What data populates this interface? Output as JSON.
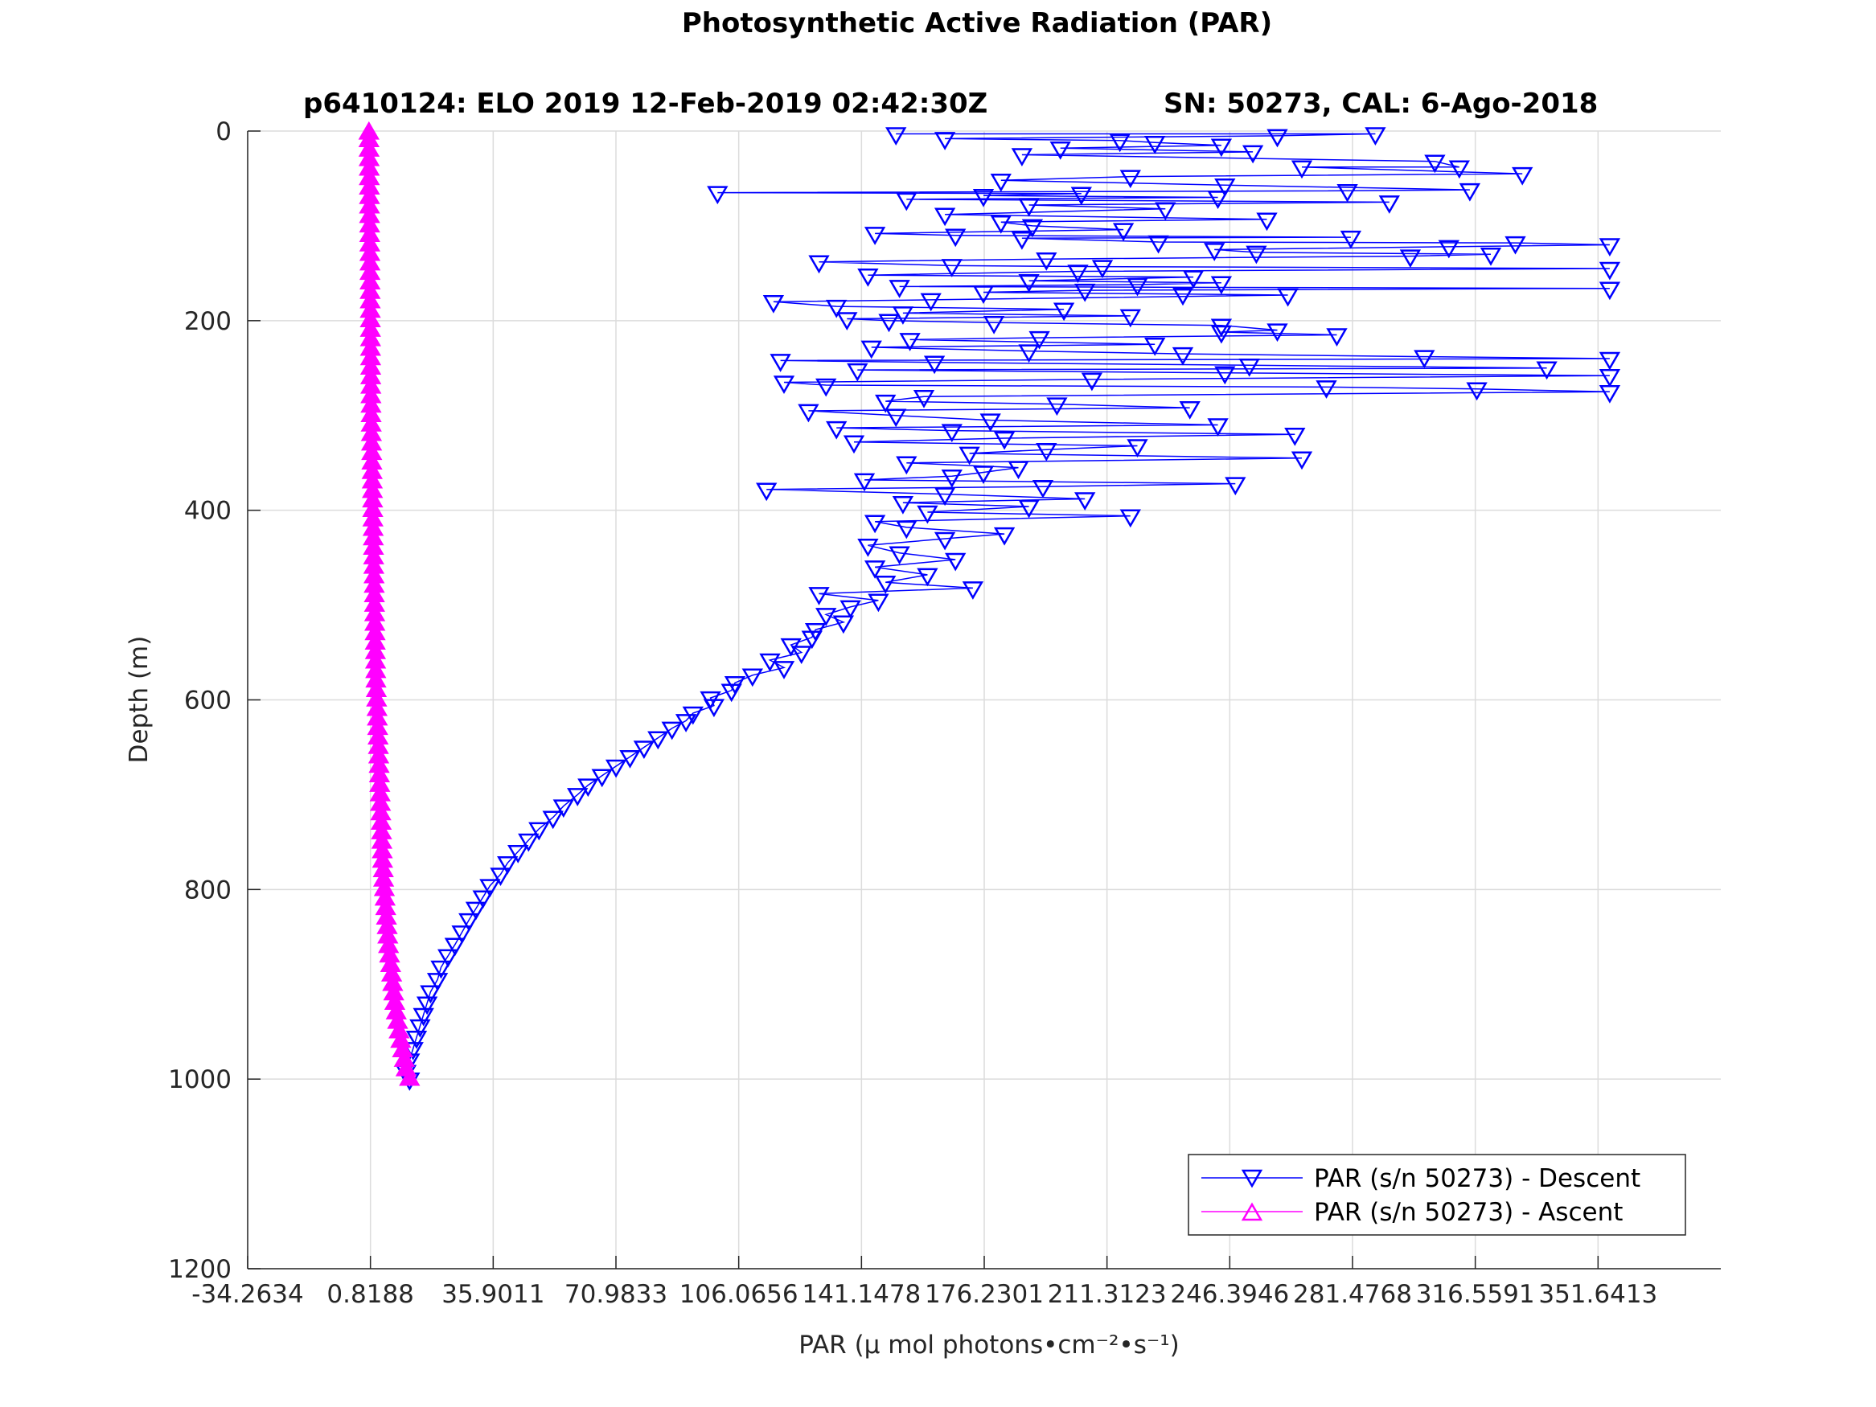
{
  "chart_data": {
    "type": "line",
    "title": "Photosynthetic Active Radiation (PAR)",
    "subtitle_left": "p6410124: ELO 2019 12-Feb-2019 02:42:30Z",
    "subtitle_right": "SN: 50273, CAL: 6-Ago-2018",
    "xlabel": "PAR (μ mol photons•cm⁻²•s⁻¹)",
    "ylabel": "Depth (m)",
    "xlim": [
      -34.2634,
      386.7236
    ],
    "ylim": [
      0,
      1200
    ],
    "y_reversed": true,
    "xticks": [
      -34.2634,
      0.8188,
      35.9011,
      70.9833,
      106.0656,
      141.1478,
      176.2301,
      211.3123,
      246.3946,
      281.4768,
      316.5591,
      351.6413
    ],
    "xtick_labels": [
      "-34.2634",
      "0.8188",
      "35.9011",
      "70.9833",
      "106.0656",
      "141.1478",
      "176.2301",
      "211.3123",
      "246.3946",
      "281.4768",
      "316.5591",
      "351.6413"
    ],
    "yticks": [
      0,
      200,
      400,
      600,
      800,
      1000,
      1200
    ],
    "ytick_labels": [
      "0",
      "200",
      "400",
      "600",
      "800",
      "1000",
      "1200"
    ],
    "grid": true,
    "legend_position": "bottom-right",
    "series": [
      {
        "name": "PAR (s/n 50273) - Descent",
        "color": "#0000ff",
        "marker": "triangle-down",
        "points": [
          [
            151,
            3
          ],
          [
            288,
            3
          ],
          [
            260,
            5
          ],
          [
            165,
            8
          ],
          [
            215,
            10
          ],
          [
            225,
            12
          ],
          [
            244,
            15
          ],
          [
            198,
            18
          ],
          [
            253,
            22
          ],
          [
            187,
            25
          ],
          [
            305,
            32
          ],
          [
            312,
            38
          ],
          [
            267,
            38
          ],
          [
            330,
            45
          ],
          [
            218,
            48
          ],
          [
            181,
            52
          ],
          [
            245,
            57
          ],
          [
            315,
            62
          ],
          [
            280,
            63
          ],
          [
            100,
            65
          ],
          [
            204,
            66
          ],
          [
            176,
            68
          ],
          [
            243,
            70
          ],
          [
            154,
            72
          ],
          [
            292,
            75
          ],
          [
            189,
            78
          ],
          [
            228,
            82
          ],
          [
            165,
            88
          ],
          [
            257,
            93
          ],
          [
            181,
            96
          ],
          [
            190,
            100
          ],
          [
            216,
            104
          ],
          [
            145,
            108
          ],
          [
            168,
            110
          ],
          [
            281,
            112
          ],
          [
            187,
            113
          ],
          [
            226,
            117
          ],
          [
            328,
            118
          ],
          [
            355,
            120
          ],
          [
            309,
            122
          ],
          [
            242,
            125
          ],
          [
            254,
            128
          ],
          [
            321,
            130
          ],
          [
            298,
            132
          ],
          [
            194,
            135
          ],
          [
            129,
            138
          ],
          [
            167,
            142
          ],
          [
            210,
            143
          ],
          [
            355,
            145
          ],
          [
            203,
            148
          ],
          [
            143,
            152
          ],
          [
            236,
            154
          ],
          [
            189,
            158
          ],
          [
            244,
            160
          ],
          [
            220,
            162
          ],
          [
            152,
            164
          ],
          [
            355,
            166
          ],
          [
            205,
            168
          ],
          [
            176,
            170
          ],
          [
            233,
            172
          ],
          [
            263,
            173
          ],
          [
            161,
            178
          ],
          [
            116,
            180
          ],
          [
            134,
            185
          ],
          [
            199,
            188
          ],
          [
            153,
            192
          ],
          [
            218,
            195
          ],
          [
            137,
            198
          ],
          [
            149,
            200
          ],
          [
            179,
            202
          ],
          [
            244,
            205
          ],
          [
            260,
            210
          ],
          [
            244,
            212
          ],
          [
            277,
            215
          ],
          [
            192,
            218
          ],
          [
            155,
            220
          ],
          [
            225,
            225
          ],
          [
            144,
            228
          ],
          [
            189,
            232
          ],
          [
            233,
            235
          ],
          [
            302,
            238
          ],
          [
            355,
            240
          ],
          [
            118,
            242
          ],
          [
            162,
            244
          ],
          [
            252,
            247
          ],
          [
            337,
            250
          ],
          [
            140,
            252
          ],
          [
            245,
            255
          ],
          [
            355,
            258
          ],
          [
            207,
            262
          ],
          [
            119,
            265
          ],
          [
            131,
            268
          ],
          [
            274,
            270
          ],
          [
            317,
            272
          ],
          [
            355,
            275
          ],
          [
            159,
            280
          ],
          [
            148,
            285
          ],
          [
            197,
            288
          ],
          [
            235,
            292
          ],
          [
            126,
            295
          ],
          [
            151,
            300
          ],
          [
            178,
            305
          ],
          [
            243,
            310
          ],
          [
            134,
            313
          ],
          [
            167,
            316
          ],
          [
            265,
            320
          ],
          [
            182,
            324
          ],
          [
            139,
            328
          ],
          [
            220,
            332
          ],
          [
            194,
            336
          ],
          [
            172,
            340
          ],
          [
            267,
            345
          ],
          [
            154,
            350
          ],
          [
            186,
            355
          ],
          [
            176,
            360
          ],
          [
            167,
            364
          ],
          [
            142,
            368
          ],
          [
            248,
            372
          ],
          [
            193,
            375
          ],
          [
            114,
            378
          ],
          [
            165,
            383
          ],
          [
            205,
            388
          ],
          [
            153,
            392
          ],
          [
            189,
            396
          ],
          [
            160,
            402
          ],
          [
            218,
            406
          ],
          [
            145,
            412
          ],
          [
            154,
            418
          ],
          [
            182,
            425
          ],
          [
            165,
            430
          ],
          [
            143,
            437
          ],
          [
            152,
            445
          ],
          [
            168,
            452
          ],
          [
            145,
            460
          ],
          [
            160,
            468
          ],
          [
            148,
            476
          ],
          [
            173,
            482
          ],
          [
            129,
            488
          ],
          [
            146,
            495
          ],
          [
            138,
            502
          ],
          [
            131,
            510
          ],
          [
            136,
            518
          ],
          [
            128,
            526
          ],
          [
            127,
            534
          ],
          [
            121,
            542
          ],
          [
            124,
            550
          ],
          [
            115,
            558
          ],
          [
            119,
            566
          ],
          [
            110,
            574
          ],
          [
            105,
            582
          ],
          [
            104,
            590
          ],
          [
            98,
            598
          ],
          [
            99,
            606
          ],
          [
            93,
            614
          ],
          [
            91,
            622
          ],
          [
            87,
            630
          ],
          [
            83,
            640
          ],
          [
            79,
            650
          ],
          [
            75,
            660
          ],
          [
            71,
            670
          ],
          [
            67,
            680
          ],
          [
            63,
            690
          ],
          [
            60,
            700
          ],
          [
            56,
            712
          ],
          [
            53,
            724
          ],
          [
            49,
            736
          ],
          [
            46,
            748
          ],
          [
            43,
            760
          ],
          [
            40,
            772
          ],
          [
            38,
            784
          ],
          [
            35,
            796
          ],
          [
            33,
            808
          ],
          [
            31,
            820
          ],
          [
            29,
            832
          ],
          [
            27,
            845
          ],
          [
            25,
            858
          ],
          [
            23,
            870
          ],
          [
            21,
            882
          ],
          [
            20,
            895
          ],
          [
            18,
            908
          ],
          [
            17,
            920
          ],
          [
            16,
            932
          ],
          [
            15,
            944
          ],
          [
            14,
            956
          ],
          [
            13,
            968
          ],
          [
            12,
            980
          ],
          [
            11,
            992
          ],
          [
            12,
            1000
          ]
        ]
      },
      {
        "name": "PAR (s/n 50273) - Ascent",
        "color": "#ff00ff",
        "marker": "triangle-up",
        "points": [
          [
            12,
            1000
          ],
          [
            11,
            990
          ],
          [
            10.5,
            980
          ],
          [
            10,
            970
          ],
          [
            9.5,
            960
          ],
          [
            9,
            950
          ],
          [
            8.6,
            940
          ],
          [
            8.2,
            930
          ],
          [
            7.8,
            920
          ],
          [
            7.5,
            910
          ],
          [
            7.2,
            900
          ],
          [
            6.9,
            890
          ],
          [
            6.6,
            880
          ],
          [
            6.3,
            870
          ],
          [
            6,
            860
          ],
          [
            5.8,
            850
          ],
          [
            5.6,
            840
          ],
          [
            5.4,
            830
          ],
          [
            5.2,
            820
          ],
          [
            5,
            810
          ],
          [
            4.8,
            800
          ],
          [
            4.6,
            790
          ],
          [
            4.5,
            780
          ],
          [
            4.3,
            770
          ],
          [
            4.2,
            760
          ],
          [
            4.1,
            750
          ],
          [
            4,
            740
          ],
          [
            3.9,
            730
          ],
          [
            3.8,
            720
          ],
          [
            3.7,
            710
          ],
          [
            3.6,
            700
          ],
          [
            3.5,
            690
          ],
          [
            3.4,
            680
          ],
          [
            3.3,
            670
          ],
          [
            3.2,
            660
          ],
          [
            3.1,
            650
          ],
          [
            3,
            640
          ],
          [
            2.9,
            630
          ],
          [
            2.8,
            620
          ],
          [
            2.7,
            610
          ],
          [
            2.6,
            600
          ],
          [
            2.5,
            590
          ],
          [
            2.4,
            580
          ],
          [
            2.35,
            570
          ],
          [
            2.3,
            560
          ],
          [
            2.25,
            550
          ],
          [
            2.2,
            540
          ],
          [
            2.15,
            530
          ],
          [
            2.1,
            520
          ],
          [
            2.05,
            510
          ],
          [
            2,
            500
          ],
          [
            1.95,
            490
          ],
          [
            1.9,
            480
          ],
          [
            1.85,
            470
          ],
          [
            1.8,
            460
          ],
          [
            1.75,
            450
          ],
          [
            1.7,
            440
          ],
          [
            1.65,
            430
          ],
          [
            1.6,
            420
          ],
          [
            1.55,
            410
          ],
          [
            1.5,
            400
          ],
          [
            1.45,
            390
          ],
          [
            1.4,
            380
          ],
          [
            1.35,
            370
          ],
          [
            1.3,
            360
          ],
          [
            1.25,
            350
          ],
          [
            1.2,
            340
          ],
          [
            1.15,
            330
          ],
          [
            1.1,
            320
          ],
          [
            1.05,
            310
          ],
          [
            1,
            300
          ],
          [
            0.98,
            290
          ],
          [
            0.96,
            280
          ],
          [
            0.94,
            270
          ],
          [
            0.92,
            260
          ],
          [
            0.9,
            250
          ],
          [
            0.88,
            240
          ],
          [
            0.86,
            230
          ],
          [
            0.84,
            220
          ],
          [
            0.82,
            210
          ],
          [
            0.8,
            200
          ],
          [
            0.78,
            190
          ],
          [
            0.76,
            180
          ],
          [
            0.74,
            170
          ],
          [
            0.72,
            160
          ],
          [
            0.7,
            150
          ],
          [
            0.68,
            140
          ],
          [
            0.66,
            130
          ],
          [
            0.64,
            120
          ],
          [
            0.62,
            110
          ],
          [
            0.6,
            100
          ],
          [
            0.58,
            90
          ],
          [
            0.56,
            80
          ],
          [
            0.54,
            70
          ],
          [
            0.52,
            60
          ],
          [
            0.5,
            50
          ],
          [
            0.48,
            40
          ],
          [
            0.46,
            30
          ],
          [
            0.44,
            20
          ],
          [
            0.42,
            10
          ],
          [
            0.4,
            2
          ]
        ]
      }
    ]
  }
}
